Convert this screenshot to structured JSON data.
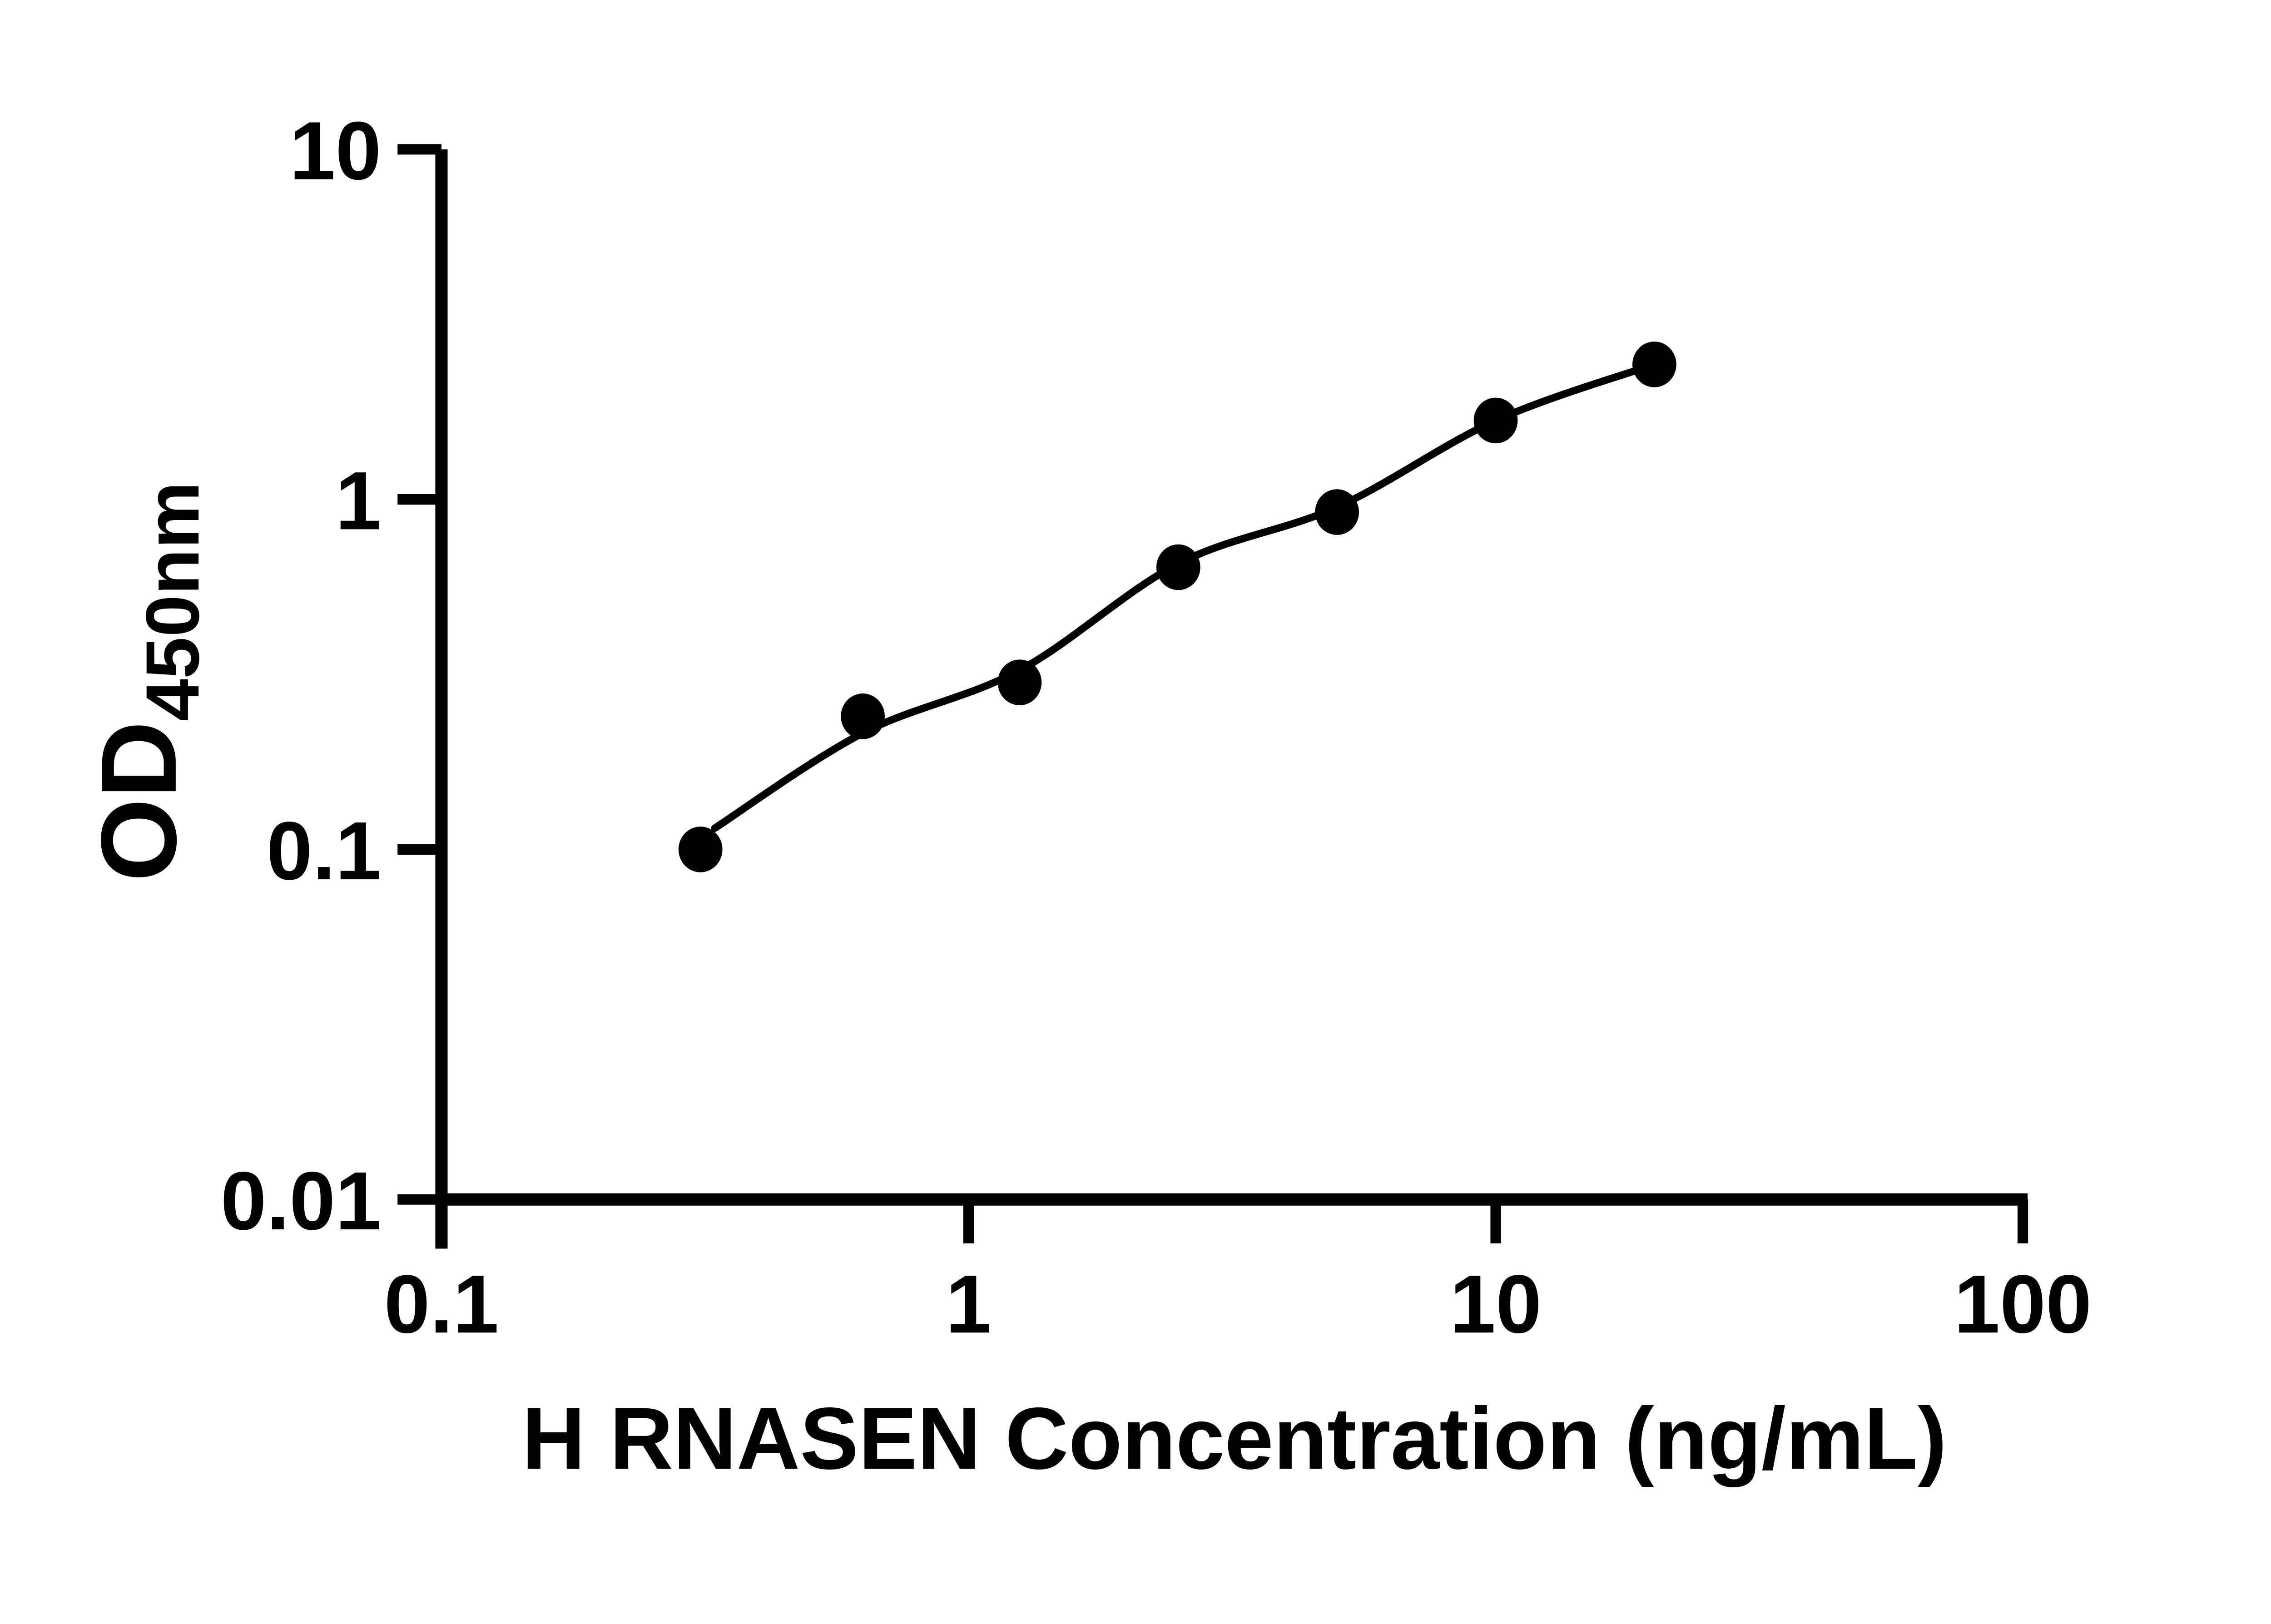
{
  "figure": {
    "background": "#ffffff"
  },
  "chart_data": {
    "type": "scatter",
    "title": "",
    "xlabel": "H RNASEN Concentration (ng/mL)",
    "ylabel_main": "OD",
    "ylabel_sub": "450nm",
    "x_scale": "log",
    "y_scale": "log",
    "xlim": [
      0.1,
      100
    ],
    "ylim": [
      0.01,
      10
    ],
    "grid": false,
    "legend": "none",
    "marker_color": "#000000",
    "line_color": "#000000",
    "axis_color": "#000000",
    "x": [
      0.31,
      0.63,
      1.25,
      2.5,
      5,
      10,
      20
    ],
    "y": [
      0.1,
      0.24,
      0.3,
      0.64,
      0.92,
      1.68,
      2.43
    ],
    "fit_curve_anchors": [
      [
        0.33,
        0.115
      ],
      [
        0.63,
        0.215
      ],
      [
        1.25,
        0.325
      ],
      [
        2.5,
        0.655
      ],
      [
        5,
        0.95
      ],
      [
        10,
        1.68
      ],
      [
        20,
        2.43
      ]
    ],
    "x_ticks": [
      0.1,
      1,
      10,
      100
    ],
    "x_tick_labels": [
      "0.1",
      "1",
      "10",
      "100"
    ],
    "y_ticks": [
      10,
      1,
      0.1,
      0.01
    ],
    "y_tick_labels": [
      "10",
      "1",
      "0.1",
      "0.01"
    ]
  }
}
